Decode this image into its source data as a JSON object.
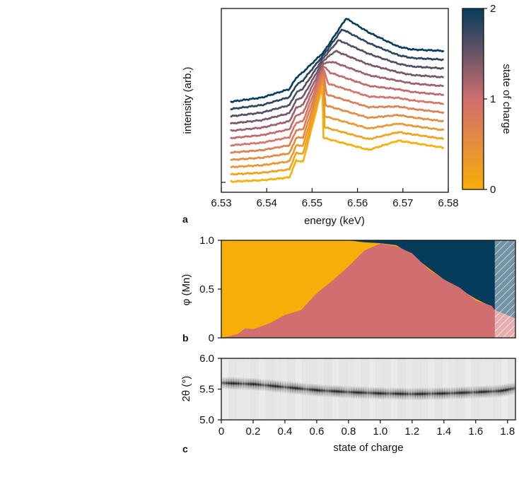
{
  "chart_data": [
    {
      "panel": "a",
      "type": "line",
      "xlabel": "energy (keV)",
      "ylabel": "intensity (arb.)",
      "xlim": [
        6.53,
        6.58
      ],
      "xticks": [
        "6.53",
        "6.54",
        "6.55",
        "6.56",
        "6.57",
        "6.58"
      ],
      "grid": false,
      "series_count": 12,
      "series_color_by": "state of charge",
      "x_keypoints": [
        6.532,
        6.539,
        6.545,
        6.5465,
        6.548,
        6.5525,
        6.557,
        6.5625,
        6.569,
        6.572,
        6.579
      ]
    },
    {
      "panel": "colorbar",
      "type": "colorbar",
      "label": "state of charge",
      "ticks": [
        "0",
        "1",
        "2"
      ],
      "range": [
        0,
        2
      ],
      "colors": [
        "#f7ae08",
        "#d06e70",
        "#053c5c"
      ]
    },
    {
      "panel": "b",
      "type": "area",
      "ylabel": "φ (Mn)",
      "ylim": [
        0,
        1
      ],
      "yticks": [
        "0",
        "0.5",
        "1.0"
      ],
      "xlim": [
        0,
        1.85
      ],
      "x": [
        0,
        0.1,
        0.15,
        0.2,
        0.3,
        0.4,
        0.5,
        0.6,
        0.7,
        0.8,
        0.9,
        1.0,
        1.1,
        1.2,
        1.3,
        1.4,
        1.5,
        1.6,
        1.7,
        1.72,
        1.85
      ],
      "series": [
        {
          "values": [
            0.0,
            0.05,
            0.08,
            0.1,
            0.15,
            0.22,
            0.3,
            0.45,
            0.58,
            0.75,
            0.88,
            0.97,
            0.95,
            0.85,
            0.72,
            0.6,
            0.5,
            0.4,
            0.32,
            0.28,
            0.2
          ]
        },
        {
          "values": [
            1.0,
            0.95,
            0.92,
            0.9,
            0.85,
            0.78,
            0.7,
            0.55,
            0.42,
            0.25,
            0.1,
            0.0,
            0.0,
            0.0,
            0.0,
            0.0,
            0.0,
            0.0,
            0.0,
            0.0,
            0.0
          ]
        },
        {
          "values": [
            0.0,
            0.0,
            0.0,
            0.0,
            0.0,
            0.0,
            0.0,
            0.0,
            0.0,
            0.0,
            0.02,
            0.03,
            0.05,
            0.15,
            0.28,
            0.4,
            0.5,
            0.6,
            0.68,
            0.72,
            0.8
          ]
        }
      ],
      "colors": [
        "#d06e70",
        "#f7ae08",
        "#053c5c"
      ],
      "hatched_from_x": 1.72
    },
    {
      "panel": "c",
      "type": "heatmap",
      "xlabel": "state of charge",
      "ylabel": "2θ (°)",
      "xlim": [
        0,
        1.85
      ],
      "ylim": [
        5.0,
        6.0
      ],
      "xticks": [
        "0",
        "0.2",
        "0.4",
        "0.6",
        "0.8",
        "1.0",
        "1.2",
        "1.4",
        "1.6",
        "1.8"
      ],
      "yticks": [
        "5.0",
        "5.5",
        "6.0"
      ],
      "peak_x": [
        0,
        0.2,
        0.4,
        0.6,
        0.8,
        1.0,
        1.2,
        1.4,
        1.6,
        1.75,
        1.85
      ],
      "peak_2theta": [
        5.6,
        5.58,
        5.53,
        5.48,
        5.45,
        5.43,
        5.42,
        5.43,
        5.45,
        5.47,
        5.52
      ]
    }
  ],
  "panel_labels": {
    "a": "a",
    "b": "b",
    "c": "c"
  }
}
